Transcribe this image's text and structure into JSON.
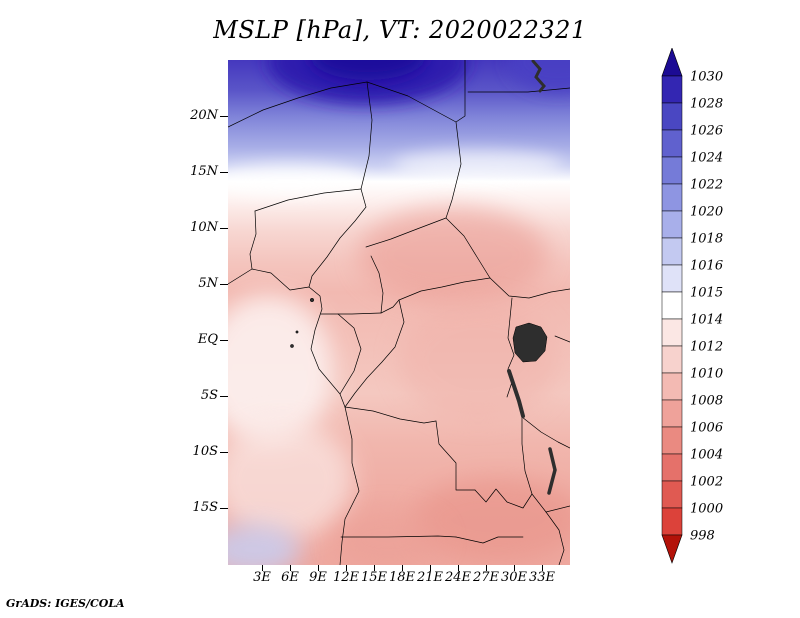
{
  "title": "MSLP [hPa], VT: 2020022321",
  "attribution": "GrADS: IGES/COLA",
  "axes": {
    "lat_ticks": [
      "20N",
      "15N",
      "10N",
      "5N",
      "EQ",
      "5S",
      "10S",
      "15S"
    ],
    "lon_ticks": [
      "3E",
      "6E",
      "9E",
      "12E",
      "15E",
      "18E",
      "21E",
      "24E",
      "27E",
      "30E",
      "33E"
    ]
  },
  "colorbar": {
    "orientation": "vertical",
    "position": "right",
    "levels": [
      "1030",
      "1028",
      "1026",
      "1024",
      "1022",
      "1020",
      "1018",
      "1016",
      "1015",
      "1014",
      "1012",
      "1010",
      "1008",
      "1006",
      "1004",
      "1002",
      "1000",
      "998"
    ],
    "colors_top_to_bottom": [
      "#1c0b94",
      "#3326b2",
      "#4a47c2",
      "#6061ce",
      "#757bd8",
      "#8e95e2",
      "#a8afea",
      "#c3c9f1",
      "#dfe2f8",
      "#ffffff",
      "#fbe7e4",
      "#f7d2cd",
      "#f3bab3",
      "#efa29a",
      "#ea8a81",
      "#e5716a",
      "#e05a52",
      "#dc423a",
      "#b31209"
    ]
  },
  "chart_data": {
    "type": "heatmap",
    "title": "MSLP [hPa], VT: 2020022321",
    "variable": "Mean sea level pressure (MSLP), filled contours over central Africa",
    "units": "hPa",
    "valid_time": "2020022321",
    "x_tick_labels": [
      "3E",
      "6E",
      "9E",
      "12E",
      "15E",
      "18E",
      "21E",
      "24E",
      "27E",
      "30E",
      "33E"
    ],
    "y_tick_labels": [
      "20N",
      "15N",
      "10N",
      "5N",
      "EQ",
      "5S",
      "10S",
      "15S"
    ],
    "lon_range_deg_east": [
      0,
      36
    ],
    "lat_range_deg": [
      -20,
      25
    ],
    "contour_levels_hPa": [
      998,
      1000,
      1002,
      1004,
      1006,
      1008,
      1010,
      1012,
      1014,
      1015,
      1016,
      1018,
      1020,
      1022,
      1024,
      1026,
      1028,
      1030
    ],
    "colorbar_labels_top_to_bottom": [
      1030,
      1028,
      1026,
      1024,
      1022,
      1020,
      1018,
      1016,
      1015,
      1014,
      1012,
      1010,
      1008,
      1006,
      1004,
      1002,
      1000,
      998
    ],
    "palette": "blue = high pressure, white near 1014-1015, pink/red = lower pressure; arrow caps above 1030 (dark blue) and below 998 (dark red)",
    "legend_position": "right",
    "grid": false,
    "field_summary": [
      {
        "region": "Sahara, north of ~18N",
        "approx_value_hPa": "1018-1030, maximum above 1030 near top center"
      },
      {
        "region": "band near 14-15N",
        "approx_value_hPa": "1014-1016 (white transition band)"
      },
      {
        "region": "10N to EQ interior",
        "approx_value_hPa": "1006-1012, locally darker pink 1006-1008"
      },
      {
        "region": "Atlantic coast near EQ-10S",
        "approx_value_hPa": "1012-1015 (pale)"
      },
      {
        "region": "southern interior 5S-15S",
        "approx_value_hPa": "1004-1010, darker patches near 10-15S / 20-30E"
      },
      {
        "region": "bottom-left corner of map",
        "approx_value_hPa": "about 1015-1016 (pale blue)"
      }
    ],
    "renderer": "GrADS: IGES/COLA"
  }
}
